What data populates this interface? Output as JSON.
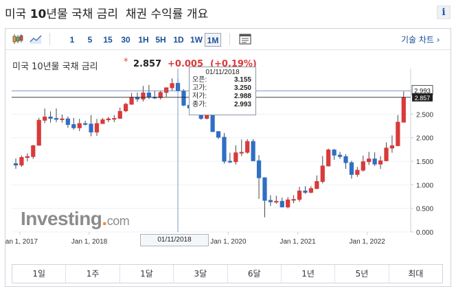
{
  "page": {
    "title_main": "미국 ",
    "title_bold": "10",
    "title_rest": "년물 국채 금리  채권 수익률 개요",
    "info_icon": "info-icon"
  },
  "toolbar": {
    "chart_icons": [
      "candlestick-icon",
      "area-chart-icon"
    ],
    "intervals": [
      "1",
      "5",
      "15",
      "30",
      "1H",
      "5H",
      "1D",
      "1W",
      "1M"
    ],
    "active_interval": "1M",
    "settings_icon": "table-icon",
    "tools_label": "기술 차트 ›"
  },
  "instrument": {
    "label": "미국 10년물 국채 금리",
    "star": "*",
    "price": "2.857",
    "change": "+0.005",
    "change_pct": "(+0.19%)"
  },
  "tooltip": {
    "date": "01/11/2018",
    "rows": [
      {
        "label": "오픈:",
        "value": "3.155"
      },
      {
        "label": "고가:",
        "value": "3.250"
      },
      {
        "label": "저가:",
        "value": "2.988"
      },
      {
        "label": "종가:",
        "value": "2.993"
      }
    ]
  },
  "cursor": {
    "date_label": "01/11/2018",
    "price_label": "2.993"
  },
  "current_price_label": "2.857",
  "logo": {
    "word": "Investing",
    "dot": ".",
    "suffix": "com"
  },
  "ranges": [
    "1일",
    "1주",
    "1달",
    "3달",
    "6달",
    "1년",
    "5년",
    "최대"
  ],
  "colors": {
    "up": "#d93a3a",
    "down": "#2f6fc4",
    "axis": "#c8cdd5",
    "grid": "#edf0f4"
  },
  "chart_data": {
    "type": "candlestick",
    "interval": "monthly",
    "x_tick_labels": [
      "Jan 1, 2017",
      "Jan 1, 2018",
      "Jan 1, 2020",
      "Jan 1, 2021",
      "Jan 1, 2022"
    ],
    "y_tick_labels": [
      "0.000",
      "0.500",
      "1.000",
      "1.500",
      "2.000",
      "2.500",
      "3.000"
    ],
    "ylim": [
      0,
      3.35
    ],
    "candles": [
      {
        "o": 1.45,
        "h": 1.56,
        "l": 1.34,
        "c": 1.42
      },
      {
        "o": 1.42,
        "h": 1.62,
        "l": 1.38,
        "c": 1.58
      },
      {
        "o": 1.58,
        "h": 1.67,
        "l": 1.5,
        "c": 1.6
      },
      {
        "o": 1.6,
        "h": 1.85,
        "l": 1.55,
        "c": 1.83
      },
      {
        "o": 1.84,
        "h": 2.42,
        "l": 1.83,
        "c": 2.37
      },
      {
        "o": 2.37,
        "h": 2.62,
        "l": 2.31,
        "c": 2.44
      },
      {
        "o": 2.44,
        "h": 2.56,
        "l": 2.32,
        "c": 2.41
      },
      {
        "o": 2.41,
        "h": 2.62,
        "l": 2.33,
        "c": 2.39
      },
      {
        "o": 2.39,
        "h": 2.49,
        "l": 2.32,
        "c": 2.4
      },
      {
        "o": 2.4,
        "h": 2.45,
        "l": 2.21,
        "c": 2.28
      },
      {
        "o": 2.28,
        "h": 2.42,
        "l": 2.17,
        "c": 2.21
      },
      {
        "o": 2.21,
        "h": 2.4,
        "l": 2.14,
        "c": 2.3
      },
      {
        "o": 2.3,
        "h": 2.36,
        "l": 2.26,
        "c": 2.29
      },
      {
        "o": 2.29,
        "h": 2.48,
        "l": 2.03,
        "c": 2.12
      },
      {
        "o": 2.12,
        "h": 2.4,
        "l": 2.04,
        "c": 2.3
      },
      {
        "o": 2.3,
        "h": 2.42,
        "l": 2.3,
        "c": 2.38
      },
      {
        "o": 2.38,
        "h": 2.44,
        "l": 2.33,
        "c": 2.4
      },
      {
        "o": 2.4,
        "h": 2.48,
        "l": 2.33,
        "c": 2.41
      },
      {
        "o": 2.41,
        "h": 2.64,
        "l": 2.4,
        "c": 2.56
      },
      {
        "o": 2.57,
        "h": 2.74,
        "l": 2.54,
        "c": 2.71
      },
      {
        "o": 2.71,
        "h": 2.95,
        "l": 2.7,
        "c": 2.86
      },
      {
        "o": 2.86,
        "h": 2.96,
        "l": 2.76,
        "c": 2.82
      },
      {
        "o": 2.82,
        "h": 3.1,
        "l": 2.77,
        "c": 2.95
      },
      {
        "o": 2.95,
        "h": 3.12,
        "l": 2.82,
        "c": 2.86
      },
      {
        "o": 2.86,
        "h": 2.99,
        "l": 2.82,
        "c": 2.85
      },
      {
        "o": 2.85,
        "h": 3.0,
        "l": 2.81,
        "c": 2.96
      },
      {
        "o": 2.96,
        "h": 3.04,
        "l": 2.87,
        "c": 3.06
      },
      {
        "o": 3.06,
        "h": 3.26,
        "l": 3.0,
        "c": 3.15
      },
      {
        "o": 3.155,
        "h": 3.25,
        "l": 2.988,
        "c": 2.993
      },
      {
        "o": 2.99,
        "h": 3.03,
        "l": 2.67,
        "c": 2.69
      },
      {
        "o": 2.69,
        "h": 2.8,
        "l": 2.61,
        "c": 2.63
      },
      {
        "o": 2.63,
        "h": 2.76,
        "l": 2.62,
        "c": 2.72
      },
      {
        "o": 2.72,
        "h": 2.73,
        "l": 2.38,
        "c": 2.41
      },
      {
        "o": 2.41,
        "h": 2.61,
        "l": 2.39,
        "c": 2.5
      },
      {
        "o": 2.5,
        "h": 2.54,
        "l": 2.12,
        "c": 2.13
      },
      {
        "o": 2.13,
        "h": 2.14,
        "l": 1.97,
        "c": 2.01
      },
      {
        "o": 2.01,
        "h": 2.1,
        "l": 1.45,
        "c": 1.5
      },
      {
        "o": 1.5,
        "h": 1.68,
        "l": 1.46,
        "c": 1.49
      },
      {
        "o": 1.49,
        "h": 1.84,
        "l": 1.43,
        "c": 1.68
      },
      {
        "o": 1.68,
        "h": 1.96,
        "l": 1.61,
        "c": 1.69
      },
      {
        "o": 1.69,
        "h": 1.97,
        "l": 1.66,
        "c": 1.92
      },
      {
        "o": 1.92,
        "h": 1.97,
        "l": 1.52,
        "c": 1.51
      },
      {
        "o": 1.51,
        "h": 1.63,
        "l": 0.7,
        "c": 1.15
      },
      {
        "o": 1.15,
        "h": 1.16,
        "l": 0.31,
        "c": 0.67
      },
      {
        "o": 0.67,
        "h": 0.78,
        "l": 0.55,
        "c": 0.64
      },
      {
        "o": 0.64,
        "h": 0.77,
        "l": 0.6,
        "c": 0.65
      },
      {
        "o": 0.65,
        "h": 0.73,
        "l": 0.52,
        "c": 0.53
      },
      {
        "o": 0.53,
        "h": 0.74,
        "l": 0.5,
        "c": 0.68
      },
      {
        "o": 0.68,
        "h": 0.78,
        "l": 0.61,
        "c": 0.69
      },
      {
        "o": 0.69,
        "h": 0.96,
        "l": 0.64,
        "c": 0.87
      },
      {
        "o": 0.87,
        "h": 0.97,
        "l": 0.81,
        "c": 0.84
      },
      {
        "o": 0.84,
        "h": 0.97,
        "l": 0.82,
        "c": 0.92
      },
      {
        "o": 0.92,
        "h": 1.2,
        "l": 0.91,
        "c": 1.07
      },
      {
        "o": 1.07,
        "h": 1.61,
        "l": 1.03,
        "c": 1.4
      },
      {
        "o": 1.4,
        "h": 1.77,
        "l": 1.39,
        "c": 1.74
      },
      {
        "o": 1.74,
        "h": 1.76,
        "l": 1.53,
        "c": 1.63
      },
      {
        "o": 1.63,
        "h": 1.7,
        "l": 1.55,
        "c": 1.6
      },
      {
        "o": 1.6,
        "h": 1.65,
        "l": 1.34,
        "c": 1.47
      },
      {
        "o": 1.47,
        "h": 1.51,
        "l": 1.13,
        "c": 1.22
      },
      {
        "o": 1.22,
        "h": 1.38,
        "l": 1.17,
        "c": 1.31
      },
      {
        "o": 1.31,
        "h": 1.62,
        "l": 1.28,
        "c": 1.49
      },
      {
        "o": 1.49,
        "h": 1.7,
        "l": 1.42,
        "c": 1.55
      },
      {
        "o": 1.55,
        "h": 1.69,
        "l": 1.4,
        "c": 1.44
      },
      {
        "o": 1.44,
        "h": 1.61,
        "l": 1.34,
        "c": 1.51
      },
      {
        "o": 1.51,
        "h": 1.9,
        "l": 1.5,
        "c": 1.78
      },
      {
        "o": 1.78,
        "h": 2.05,
        "l": 1.68,
        "c": 1.83
      },
      {
        "o": 1.83,
        "h": 2.48,
        "l": 1.82,
        "c": 2.33
      },
      {
        "o": 2.33,
        "h": 2.98,
        "l": 2.32,
        "c": 2.857
      }
    ]
  }
}
